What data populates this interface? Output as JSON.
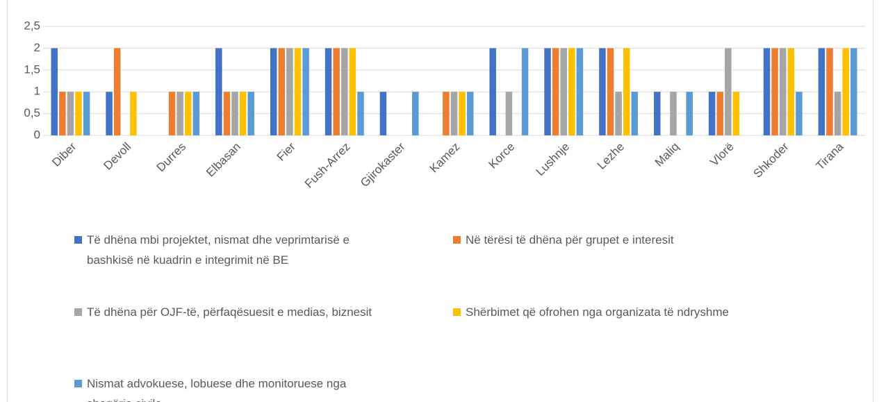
{
  "chart_data": {
    "type": "bar",
    "categories": [
      "Diber",
      "Devoll",
      "Durres",
      "Elbasan",
      "Fier",
      "Fush-Arrez",
      "Gjirokaster",
      "Kamez",
      "Korce",
      "Lushnje",
      "Lezhe",
      "Maliq",
      "Vlorë",
      "Shkoder",
      "Tirana"
    ],
    "series": [
      {
        "name": "Të dhëna mbi projektet, nismat dhe veprimtarisë e bashkisë në kuadrin e integrimit në BE",
        "color": "#4472c4",
        "values": [
          2,
          1,
          0,
          2,
          2,
          2,
          1,
          0,
          2,
          2,
          2,
          1,
          1,
          2,
          2
        ]
      },
      {
        "name": "Në tërësi të dhëna për grupet e interesit",
        "color": "#ed7d31",
        "values": [
          1,
          2,
          1,
          1,
          2,
          2,
          0,
          1,
          0,
          2,
          2,
          0,
          1,
          2,
          2
        ]
      },
      {
        "name": "Të dhëna për OJF-të, përfaqësuesit e medias, biznesit",
        "color": "#a5a5a5",
        "values": [
          1,
          0,
          1,
          1,
          2,
          2,
          0,
          1,
          1,
          2,
          1,
          1,
          2,
          2,
          1
        ]
      },
      {
        "name": "Shërbimet që ofrohen nga organizata të ndryshme",
        "color": "#ffc000",
        "values": [
          1,
          1,
          1,
          1,
          2,
          2,
          0,
          1,
          0,
          2,
          2,
          0,
          1,
          2,
          2
        ]
      },
      {
        "name": "Nismat advokuese, lobuese dhe monitoruese nga shoqëria civile",
        "color": "#5b9bd5",
        "values": [
          1,
          0,
          1,
          1,
          2,
          1,
          1,
          1,
          2,
          2,
          1,
          1,
          0,
          1,
          2
        ]
      }
    ],
    "ylim": [
      0,
      2.5
    ],
    "yticks": [
      0,
      {
        "value": 0.5,
        "label": "0,5"
      },
      1,
      {
        "value": 1.5,
        "label": "1,5"
      },
      2,
      {
        "value": 2.5,
        "label": "2,5"
      }
    ],
    "grid": true,
    "legend": "bottom"
  }
}
